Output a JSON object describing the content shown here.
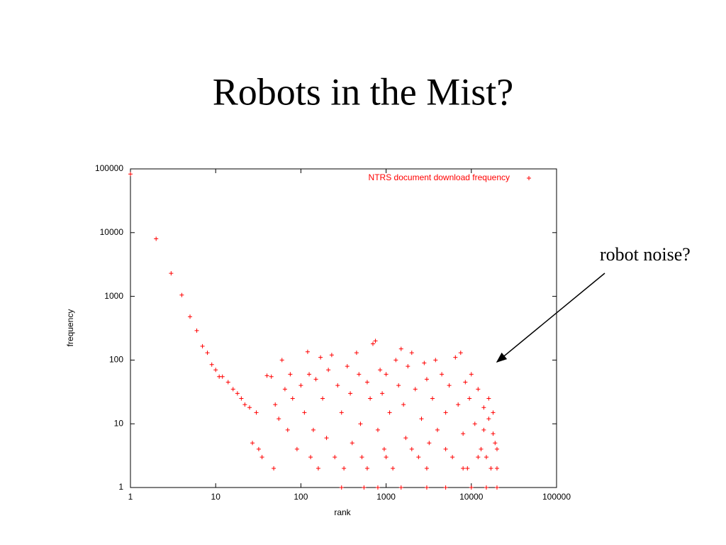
{
  "chart_data": {
    "type": "scatter",
    "title": "Robots in the Mist?",
    "annotation": "robot noise?",
    "xlabel": "rank",
    "ylabel": "frequency",
    "series": [
      {
        "name": "NTRS document download frequency",
        "color": "#ff0000",
        "x": [
          1,
          2,
          3,
          4,
          5,
          6,
          7,
          8,
          9,
          10,
          11,
          12,
          14,
          16,
          18,
          20,
          22,
          25,
          27,
          30,
          32,
          35,
          40,
          45,
          48,
          50,
          55,
          60,
          65,
          70,
          75,
          80,
          90,
          100,
          110,
          120,
          125,
          130,
          140,
          150,
          160,
          170,
          180,
          200,
          210,
          230,
          250,
          270,
          300,
          320,
          350,
          380,
          400,
          450,
          480,
          500,
          520,
          550,
          600,
          650,
          700,
          750,
          800,
          850,
          900,
          950,
          1000,
          1100,
          1200,
          1300,
          1400,
          1500,
          1600,
          1700,
          1800,
          2000,
          2200,
          2400,
          2600,
          2800,
          3000,
          3200,
          3500,
          3800,
          4000,
          4500,
          5000,
          5500,
          6000,
          6500,
          7000,
          7500,
          8000,
          8500,
          9000,
          9500,
          10000,
          11000,
          12000,
          13000,
          14000,
          15000,
          16000,
          17000,
          18000,
          19000,
          20000,
          20000,
          20000,
          15000,
          10000,
          5000,
          3000,
          1500,
          800,
          300,
          1000,
          2000,
          5000,
          8000,
          12000,
          3000,
          600,
          18000,
          16000,
          14000
        ],
        "y": [
          83000,
          8000,
          2300,
          1050,
          480,
          290,
          165,
          130,
          85,
          70,
          55,
          55,
          45,
          35,
          30,
          25,
          20,
          18,
          5,
          15,
          4,
          3,
          57,
          55,
          2,
          20,
          12,
          100,
          35,
          8,
          60,
          25,
          4,
          40,
          15,
          135,
          60,
          3,
          8,
          50,
          2,
          110,
          25,
          6,
          70,
          120,
          3,
          40,
          15,
          2,
          80,
          30,
          5,
          130,
          60,
          10,
          3,
          1,
          45,
          25,
          180,
          200,
          8,
          70,
          30,
          4,
          60,
          15,
          2,
          100,
          40,
          150,
          20,
          6,
          80,
          130,
          35,
          3,
          12,
          90,
          50,
          5,
          25,
          100,
          8,
          60,
          15,
          40,
          3,
          110,
          20,
          130,
          7,
          45,
          2,
          25,
          60,
          10,
          35,
          4,
          18,
          3,
          12,
          2,
          7,
          5,
          4,
          2,
          1,
          1,
          1,
          1,
          1,
          1,
          1,
          1,
          3,
          4,
          4,
          2,
          3,
          2,
          2,
          15,
          25,
          8
        ]
      }
    ],
    "xlog": true,
    "ylog": true,
    "xlim": [
      1,
      100000
    ],
    "ylim": [
      1,
      100000
    ],
    "xticks": [
      1,
      10,
      100,
      1000,
      10000,
      100000
    ],
    "yticks": [
      1,
      10,
      100,
      1000,
      10000,
      100000
    ],
    "legend": "top-right"
  }
}
